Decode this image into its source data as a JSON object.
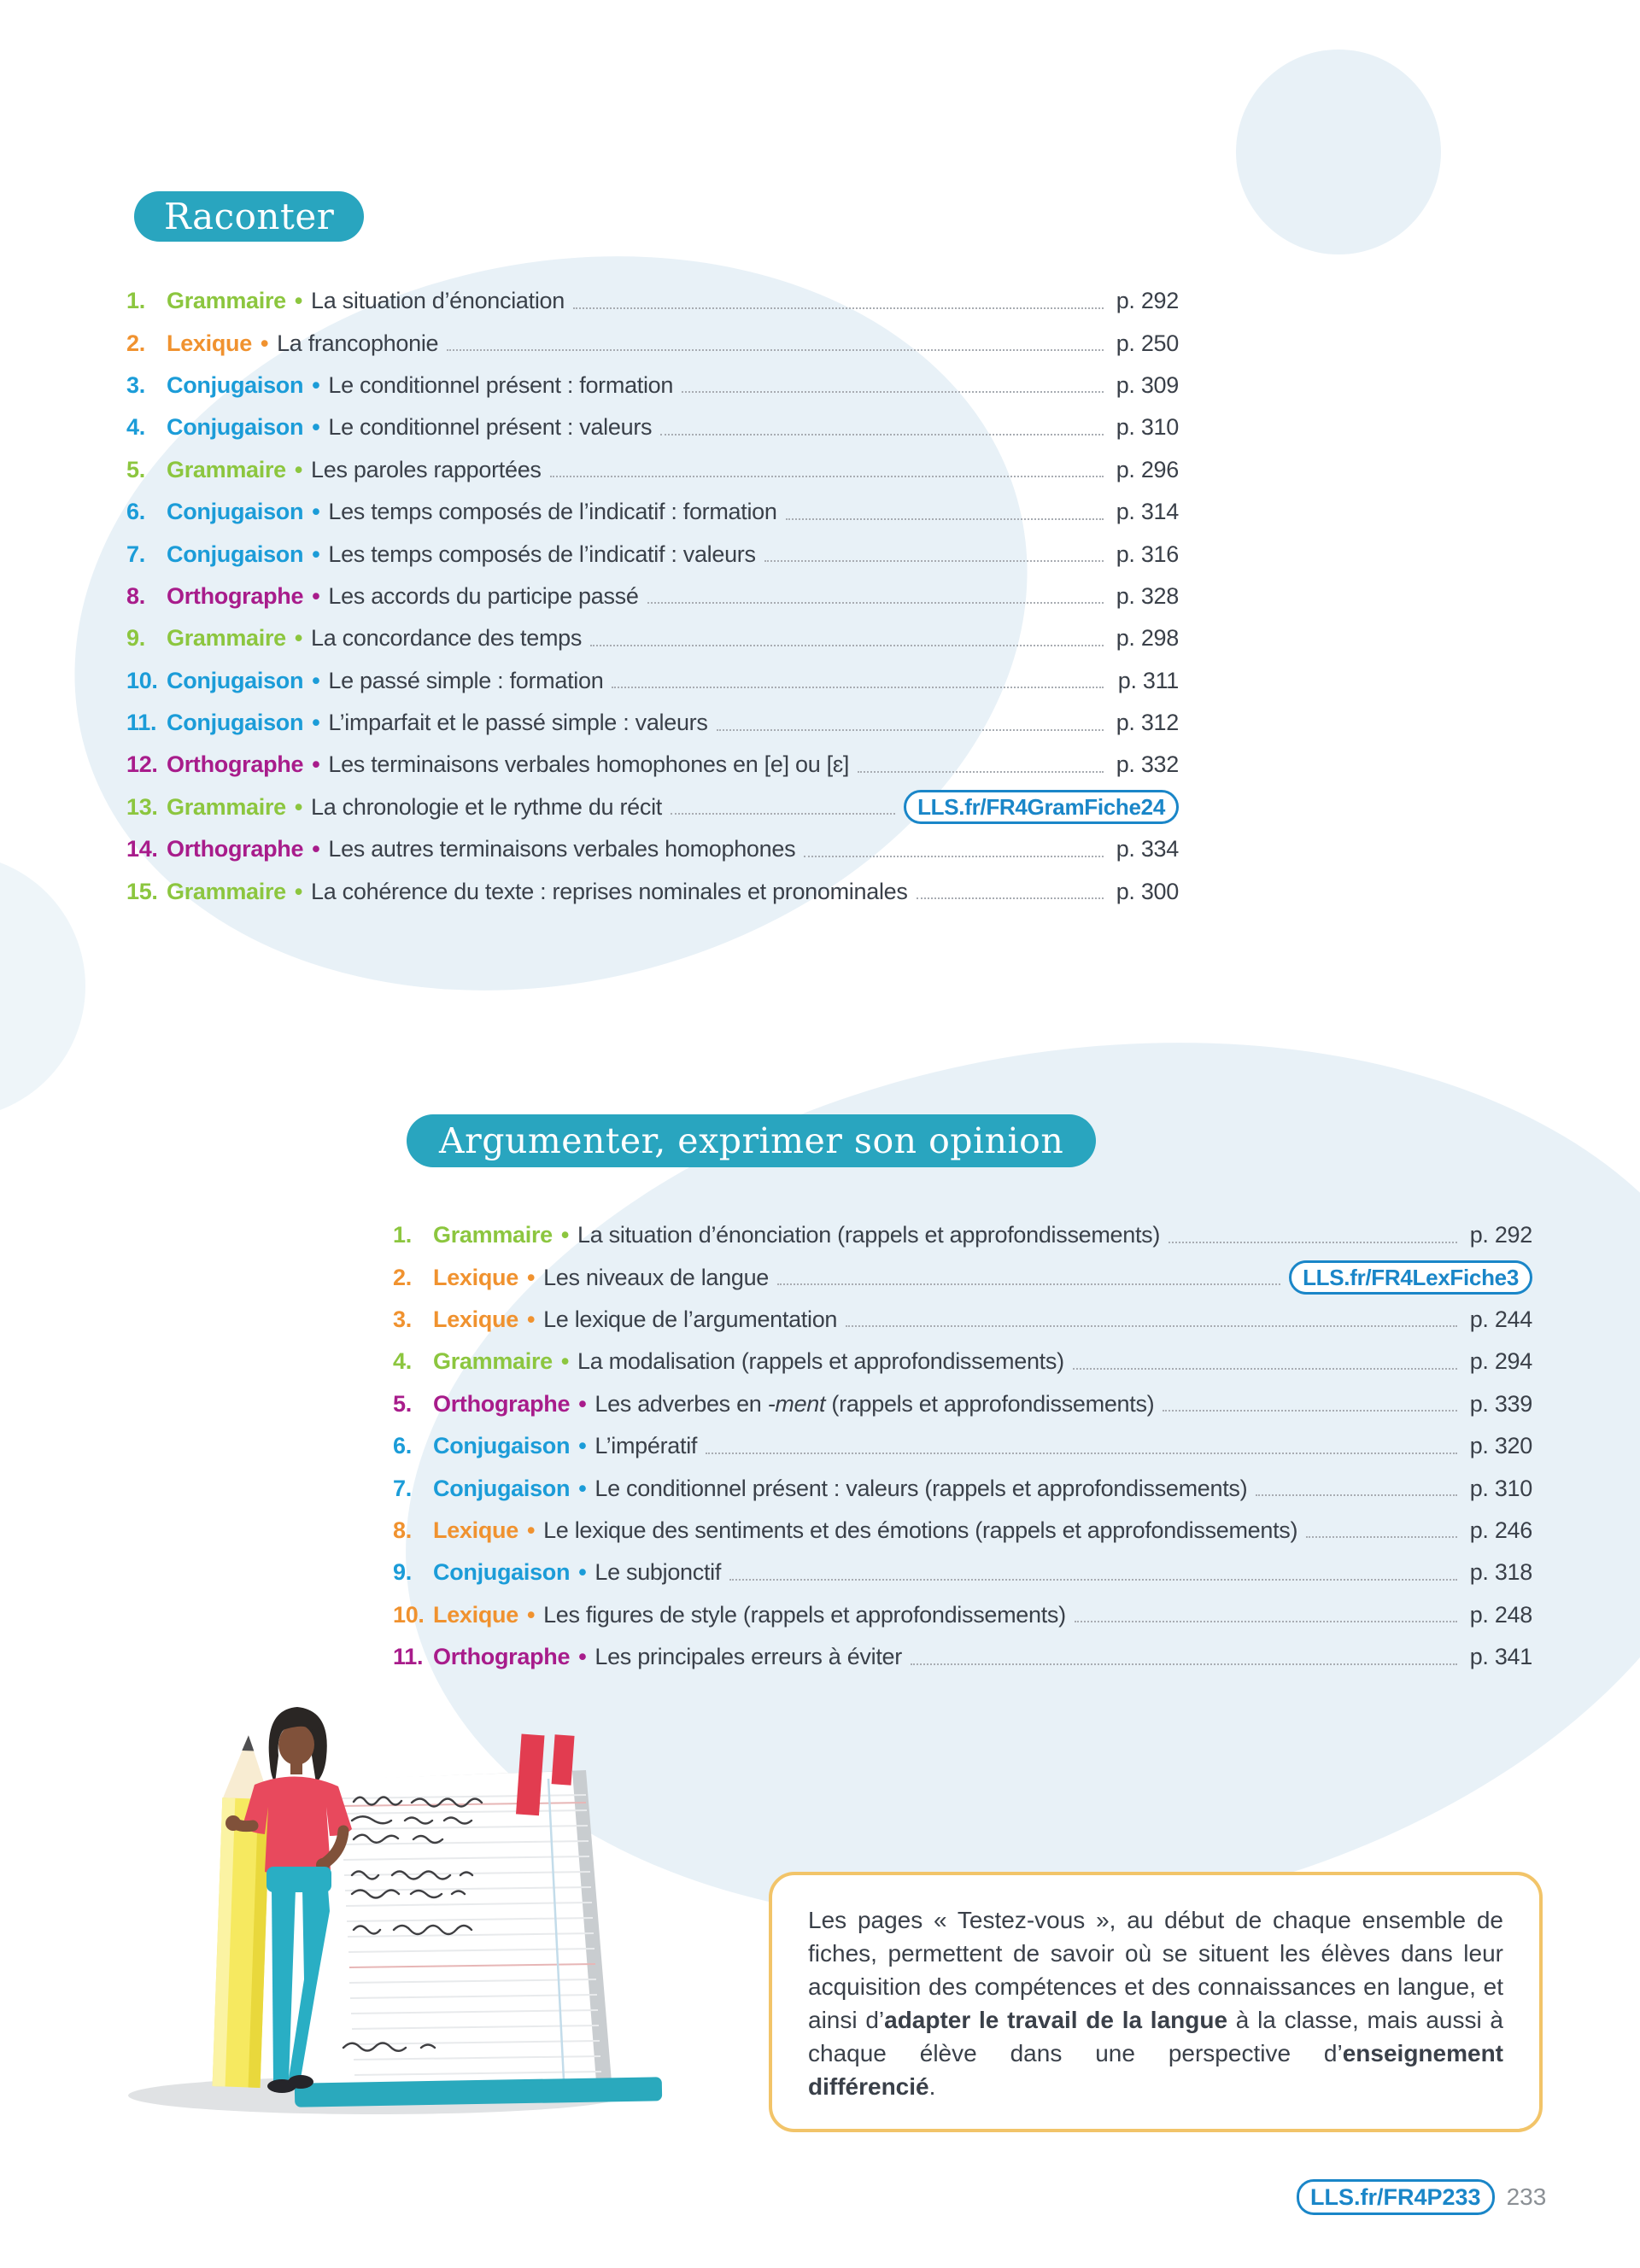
{
  "page": {
    "number": "233",
    "link_badge": "LLS.fr/FR4P233"
  },
  "colors": {
    "accent_teal": "#29a5bf",
    "grammaire": "#8cc63f",
    "lexique": "#f0922f",
    "conjugaison": "#1b9cd8",
    "orthographe": "#a81c8b",
    "link_blue": "#1a86c8",
    "box_border": "#f2c469",
    "text": "#3a4049"
  },
  "list_bullet": "•",
  "sections": [
    {
      "title": "Raconter",
      "items": [
        {
          "num": "1.",
          "category": "Grammaire",
          "key": "grammaire",
          "title": "La situation d’énonciation",
          "page": "p. 292"
        },
        {
          "num": "2.",
          "category": "Lexique",
          "key": "lexique",
          "title": "La francophonie",
          "page": "p. 250"
        },
        {
          "num": "3.",
          "category": "Conjugaison",
          "key": "conjugaison",
          "title": "Le conditionnel présent : formation",
          "page": "p. 309"
        },
        {
          "num": "4.",
          "category": "Conjugaison",
          "key": "conjugaison",
          "title": "Le conditionnel présent : valeurs",
          "page": "p. 310"
        },
        {
          "num": "5.",
          "category": "Grammaire",
          "key": "grammaire",
          "title": "Les paroles rapportées",
          "page": "p. 296"
        },
        {
          "num": "6.",
          "category": "Conjugaison",
          "key": "conjugaison",
          "title": "Les temps composés de l’indicatif : formation",
          "page": "p. 314"
        },
        {
          "num": "7.",
          "category": "Conjugaison",
          "key": "conjugaison",
          "title": "Les temps composés de l’indicatif : valeurs",
          "page": "p. 316"
        },
        {
          "num": "8.",
          "category": "Orthographe",
          "key": "orthographe",
          "title": "Les accords du participe passé",
          "page": "p. 328"
        },
        {
          "num": "9.",
          "category": "Grammaire",
          "key": "grammaire",
          "title": "La concordance des temps",
          "page": "p. 298"
        },
        {
          "num": "10.",
          "category": "Conjugaison",
          "key": "conjugaison",
          "title": "Le passé simple : formation",
          "page": "p. 311"
        },
        {
          "num": "11.",
          "category": "Conjugaison",
          "key": "conjugaison",
          "title": "L’imparfait et le passé simple : valeurs",
          "page": "p. 312"
        },
        {
          "num": "12.",
          "category": "Orthographe",
          "key": "orthographe",
          "title": "Les terminaisons verbales homophones en [e] ou [ɛ]",
          "page": "p. 332"
        },
        {
          "num": "13.",
          "category": "Grammaire",
          "key": "grammaire",
          "title": "La chronologie et le rythme du récit",
          "link": "LLS.fr/FR4GramFiche24"
        },
        {
          "num": "14.",
          "category": "Orthographe",
          "key": "orthographe",
          "title": "Les autres terminaisons verbales homophones",
          "page": "p. 334"
        },
        {
          "num": "15.",
          "category": "Grammaire",
          "key": "grammaire",
          "title": "La cohérence du texte : reprises nominales et pronominales",
          "page": "p. 300"
        }
      ]
    },
    {
      "title": "Argumenter, exprimer son opinion",
      "items": [
        {
          "num": "1.",
          "category": "Grammaire",
          "key": "grammaire",
          "title": "La situation d’énonciation (rappels et approfondissements)",
          "page": "p. 292"
        },
        {
          "num": "2.",
          "category": "Lexique",
          "key": "lexique",
          "title": "Les niveaux de langue",
          "link": "LLS.fr/FR4LexFiche3"
        },
        {
          "num": "3.",
          "category": "Lexique",
          "key": "lexique",
          "title": "Le lexique de l’argumentation",
          "page": "p. 244"
        },
        {
          "num": "4.",
          "category": "Grammaire",
          "key": "grammaire",
          "title": "La modalisation (rappels et approfondissements)",
          "page": "p. 294"
        },
        {
          "num": "5.",
          "category": "Orthographe",
          "key": "orthographe",
          "title": "Les adverbes en -ment (rappels et approfondissements)",
          "title_segments": [
            {
              "t": "Les adverbes en "
            },
            {
              "t": "-ment",
              "i": true
            },
            {
              "t": " (rappels et approfondissements)"
            }
          ],
          "page": "p. 339"
        },
        {
          "num": "6.",
          "category": "Conjugaison",
          "key": "conjugaison",
          "title": "L’impératif",
          "page": "p. 320"
        },
        {
          "num": "7.",
          "category": "Conjugaison",
          "key": "conjugaison",
          "title": "Le conditionnel présent : valeurs (rappels et approfondissements)",
          "page": "p. 310"
        },
        {
          "num": "8.",
          "category": "Lexique",
          "key": "lexique",
          "title": "Le lexique des sentiments et des émotions (rappels et approfondissements)",
          "page": "p. 246"
        },
        {
          "num": "9.",
          "category": "Conjugaison",
          "key": "conjugaison",
          "title": "Le subjonctif",
          "page": "p. 318"
        },
        {
          "num": "10.",
          "category": "Lexique",
          "key": "lexique",
          "title": "Les figures de style (rappels et approfondissements)",
          "page": "p. 248"
        },
        {
          "num": "11.",
          "category": "Orthographe",
          "key": "orthographe",
          "title": "Les principales erreurs à éviter",
          "page": "p. 341"
        }
      ]
    }
  ],
  "info_box": {
    "segments": [
      {
        "t": "Les pages « Testez-vous », au début de chaque ensemble de fiches, permettent de savoir où se situent les élèves dans leur acquisition des compétences et des connaissances en langue, et ainsi d’"
      },
      {
        "t": "adapter le travail de la langue",
        "b": true
      },
      {
        "t": " à la classe, mais aussi à chaque élève dans une perspective d’"
      },
      {
        "t": "enseignement différencié",
        "b": true
      },
      {
        "t": "."
      }
    ]
  }
}
